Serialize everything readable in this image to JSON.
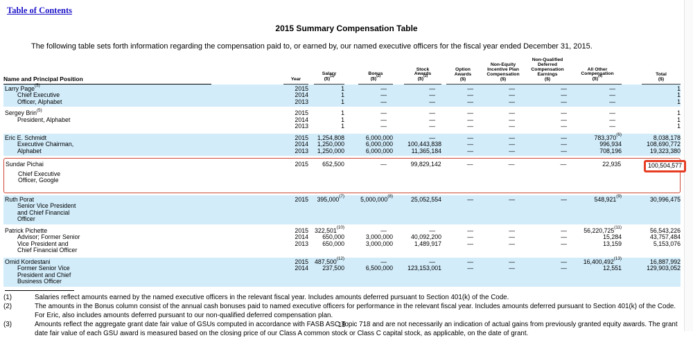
{
  "page": {
    "toc_link": "Table of Contents",
    "title": "2015 Summary Compensation Table",
    "intro": "The following table sets forth information regarding the compensation paid to, or earned by, our named executive officers for the fiscal year ended December 31, 2015.",
    "page_number": "18"
  },
  "colors": {
    "shaded_row": "#d2ecfa",
    "highlight_border": "#cd4936",
    "highlight_box": "#e63c22",
    "link": "#1e15c8"
  },
  "table": {
    "name_header": "Name and Principal Position",
    "columns": [
      {
        "id": "year",
        "lines": [
          "Year"
        ]
      },
      {
        "id": "salary",
        "lines": [
          "Salary",
          "($)^(1)"
        ]
      },
      {
        "id": "bonus",
        "lines": [
          "Bonus",
          "($)^(2)"
        ]
      },
      {
        "id": "stock",
        "lines": [
          "Stock",
          "Awards",
          "($)^(3)"
        ]
      },
      {
        "id": "option",
        "lines": [
          "Option",
          "Awards",
          "($)"
        ]
      },
      {
        "id": "neipc",
        "lines": [
          "Non-Equity",
          "Incentive Plan",
          "Compensation",
          "($)"
        ]
      },
      {
        "id": "nqdce",
        "lines": [
          "Non-Qualified",
          "Deferred",
          "Compensation",
          "Earnings",
          "($)"
        ]
      },
      {
        "id": "other",
        "lines": [
          "All Other",
          "Compensation",
          "($)^(4)"
        ]
      },
      {
        "id": "total",
        "lines": [
          "Total",
          "($)"
        ]
      }
    ],
    "groups": [
      {
        "name": "Larry Page^(5)",
        "position": [
          "Chief Executive",
          "Officer, Alphabet"
        ],
        "shaded": true,
        "rows": [
          [
            "2015",
            "1",
            "—",
            "—",
            "—",
            "—",
            "—",
            "—",
            "1"
          ],
          [
            "2014",
            "1",
            "—",
            "—",
            "—",
            "—",
            "—",
            "—",
            "1"
          ],
          [
            "2013",
            "1",
            "—",
            "—",
            "—",
            "—",
            "—",
            "—",
            "1"
          ]
        ]
      },
      {
        "name": "Sergey Brin^(5)",
        "position": [
          "President, Alphabet"
        ],
        "shaded": false,
        "rows": [
          [
            "2015",
            "1",
            "—",
            "—",
            "—",
            "—",
            "—",
            "—",
            "1"
          ],
          [
            "2014",
            "1",
            "—",
            "—",
            "—",
            "—",
            "—",
            "—",
            "1"
          ],
          [
            "2013",
            "1",
            "—",
            "—",
            "—",
            "—",
            "—",
            "—",
            "1"
          ]
        ]
      },
      {
        "name": "Eric E. Schmidt",
        "position": [
          "Executive Chairman,",
          "Alphabet"
        ],
        "shaded": true,
        "rows": [
          [
            "2015",
            "1,254,808",
            "6,000,000",
            "—",
            "—",
            "—",
            "—",
            "783,370^(6)",
            "8,038,178"
          ],
          [
            "2014",
            "1,250,000",
            "6,000,000",
            "100,443,838",
            "—",
            "—",
            "—",
            "996,934",
            "108,690,772"
          ],
          [
            "2013",
            "1,250,000",
            "6,000,000",
            "11,365,184",
            "—",
            "—",
            "—",
            "708,196",
            "19,323,380"
          ]
        ]
      },
      {
        "name": "Sundar Pichai",
        "position": [
          "Chief Executive",
          "Officer, Google"
        ],
        "shaded": false,
        "outlined": true,
        "total_boxed": true,
        "rows": [
          [
            "2015",
            "652,500",
            "—",
            "99,829,142",
            "—",
            "—",
            "—",
            "22,935",
            "100,504,577"
          ]
        ]
      },
      {
        "name": "Ruth Porat",
        "position": [
          "Senior Vice President",
          "and Chief Financial",
          "Officer"
        ],
        "shaded": true,
        "rows": [
          [
            "2015",
            "395,000^(7)",
            "5,000,000^(8)",
            "25,052,554",
            "—",
            "—",
            "—",
            "548,921^(9)",
            "30,996,475"
          ]
        ]
      },
      {
        "name": "Patrick Pichette",
        "position": [
          "Advisor; Former Senior",
          "Vice President and",
          "Chief Financial Officer"
        ],
        "shaded": false,
        "rows": [
          [
            "2015",
            "322,501^(10)",
            "—",
            "—",
            "—",
            "—",
            "—",
            "56,220,725^(11)",
            "56,543,226"
          ],
          [
            "2014",
            "650,000",
            "3,000,000",
            "40,092,200",
            "—",
            "—",
            "—",
            "15,284",
            "43,757,484"
          ],
          [
            "2013",
            "650,000",
            "3,000,000",
            "1,489,917",
            "—",
            "—",
            "—",
            "13,159",
            "5,153,076"
          ]
        ]
      },
      {
        "name": "Omid Kordestani",
        "position": [
          "Former Senior Vice",
          "President and Chief",
          "Business Officer"
        ],
        "shaded": true,
        "rows": [
          [
            "2015",
            "487,500^(12)",
            "—",
            "—",
            "—",
            "—",
            "—",
            "16,400,492^(13)",
            "16,887,992"
          ],
          [
            "2014",
            "237,500",
            "6,500,000",
            "123,153,001",
            "—",
            "—",
            "—",
            "12,551",
            "129,903,052"
          ]
        ]
      }
    ]
  },
  "footnotes": [
    {
      "num": "(1)",
      "text": "Salaries reflect amounts earned by the named executive officers in the relevant fiscal year. Includes amounts deferred pursuant to Section 401(k) of the Code."
    },
    {
      "num": "(2)",
      "text": "The amounts in the Bonus column consist of the annual cash bonuses paid to named executive officers for performance in the relevant fiscal year. Includes amounts deferred pursuant to Section 401(k) of the Code. For Eric, also includes amounts deferred pursuant to our non-qualified deferred compensation plan."
    },
    {
      "num": "(3)",
      "text": "Amounts reflect the aggregate grant date fair value of GSUs computed in accordance with FASB ASC Topic 718 and are not necessarily an indication of actual gains from previously granted equity awards. The grant date fair value of each GSU award is measured based on the closing price of our Class A common stock or Class C capital stock, as applicable, on the date of grant."
    }
  ]
}
